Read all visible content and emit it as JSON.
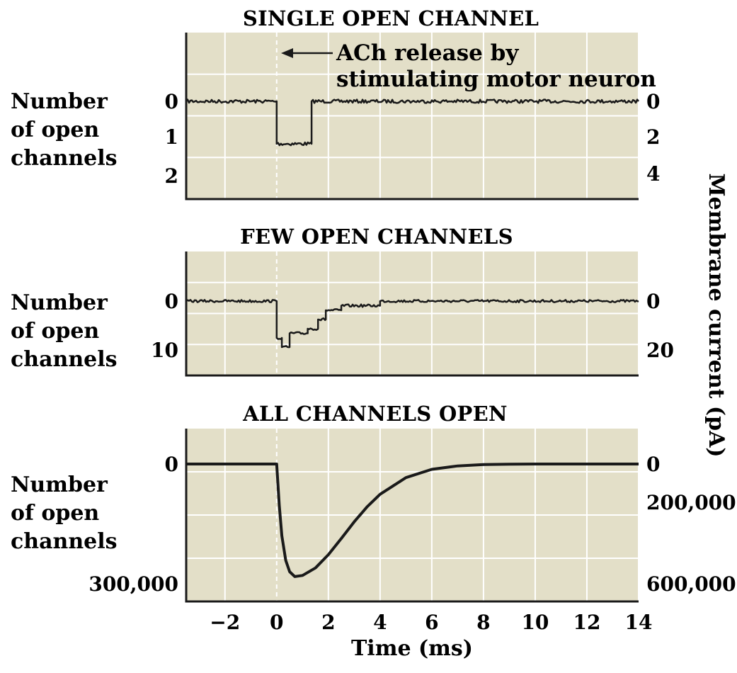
{
  "chart_data": [
    {
      "type": "line",
      "title": "SINGLE OPEN CHANNEL",
      "ylabel_left": [
        "Number",
        "of open",
        "channels"
      ],
      "yticks_left": [
        "0",
        "1",
        "2"
      ],
      "yticks_right": [
        "0",
        "2",
        "4"
      ],
      "annotation": [
        "ACh release by",
        "stimulating motor neuron"
      ],
      "grid": true,
      "series": [
        {
          "x": [
            -3.5,
            0,
            0,
            1.35,
            1.35,
            14
          ],
          "y": [
            0,
            0,
            1,
            1,
            0,
            0
          ]
        }
      ]
    },
    {
      "type": "line",
      "title": "FEW OPEN CHANNELS",
      "ylabel_left": [
        "Number",
        "of open",
        "channels"
      ],
      "yticks_left": [
        "0",
        "10"
      ],
      "yticks_right": [
        "0",
        "20"
      ],
      "grid": true,
      "series": [
        {
          "x": [
            -3.5,
            0,
            0,
            0.2,
            0.2,
            0.5,
            0.5,
            1.2,
            1.2,
            1.6,
            1.6,
            1.9,
            1.9,
            2.5,
            2.5,
            4.0,
            4.0,
            14
          ],
          "y": [
            0,
            0,
            8,
            8,
            10,
            10,
            7,
            7,
            6,
            6,
            4,
            4,
            2,
            2,
            1,
            1,
            0,
            0
          ]
        }
      ]
    },
    {
      "type": "line",
      "title": "ALL CHANNELS OPEN",
      "ylabel_left": [
        "Number",
        "of open",
        "channels"
      ],
      "yticks_left": [
        "0",
        "300,000"
      ],
      "yticks_right": [
        "0",
        "200,000",
        "600,000"
      ],
      "grid": true,
      "series": [
        {
          "x": [
            -3.5,
            0,
            0.1,
            0.2,
            0.35,
            0.5,
            0.7,
            1.0,
            1.5,
            2,
            2.5,
            3,
            3.5,
            4,
            5,
            6,
            7,
            8,
            9,
            10,
            14
          ],
          "y": [
            0,
            0,
            110000,
            190000,
            255000,
            285000,
            298000,
            295000,
            275000,
            240000,
            197000,
            153000,
            113000,
            80000,
            36000,
            14000,
            5000,
            1500,
            300,
            0,
            0
          ]
        }
      ]
    }
  ],
  "xaxis": {
    "label": "Time (ms)",
    "ticks": [
      "−2",
      "0",
      "2",
      "4",
      "6",
      "8",
      "10",
      "12",
      "14"
    ],
    "tick_values": [
      -2,
      0,
      2,
      4,
      6,
      8,
      10,
      12,
      14
    ],
    "range": [
      -3.5,
      14
    ]
  },
  "right_axis_label": "Membrane current (pA)",
  "colors": {
    "plot_bg": "#e3dfc8",
    "grid": "#ffffff",
    "trace": "#1a1a1a",
    "stim_line": "#ffffff"
  }
}
